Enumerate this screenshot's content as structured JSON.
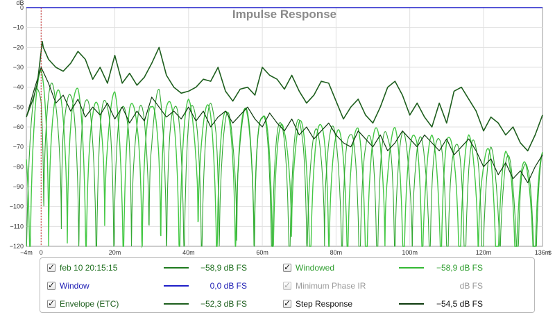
{
  "chart_data": {
    "type": "line",
    "title": "Impulse Response",
    "xlabel": "",
    "ylabel": "",
    "ylabel_unit": "dB",
    "xlim": [
      -4,
      136
    ],
    "ylim": [
      -120,
      0
    ],
    "x_ticks": [
      {
        "v": -4,
        "label": "-4m"
      },
      {
        "v": 0,
        "label": "0"
      },
      {
        "v": 20,
        "label": "20m"
      },
      {
        "v": 40,
        "label": "40m"
      },
      {
        "v": 60,
        "label": "60m"
      },
      {
        "v": 80,
        "label": "80m"
      },
      {
        "v": 100,
        "label": "100m"
      },
      {
        "v": 120,
        "label": "120m"
      },
      {
        "v": 136,
        "label": "136m"
      }
    ],
    "x_unit": "s",
    "y_ticks": [
      0,
      -10,
      -20,
      -30,
      -40,
      -50,
      -60,
      -70,
      -80,
      -90,
      -100,
      -110,
      -120
    ],
    "grid": true,
    "marker_x": 0,
    "series": [
      {
        "name": "Envelope (ETC)",
        "color": "#1d5e1d",
        "x": [
          -4,
          -3,
          -2,
          -1,
          0,
          0.3,
          0.6,
          2,
          4,
          6,
          8,
          10,
          12,
          14,
          16,
          18,
          20,
          22,
          24,
          26,
          28,
          30,
          32,
          34,
          36,
          38,
          40,
          42,
          44,
          46,
          48,
          50,
          52,
          54,
          56,
          58,
          60,
          62,
          64,
          66,
          68,
          70,
          72,
          74,
          76,
          78,
          80,
          82,
          84,
          86,
          88,
          90,
          92,
          94,
          96,
          98,
          100,
          102,
          104,
          106,
          108,
          110,
          112,
          114,
          116,
          118,
          120,
          122,
          124,
          126,
          128,
          130,
          132,
          134,
          136
        ],
        "y": [
          -55,
          -50,
          -45,
          -38,
          -22,
          -17,
          -20,
          -26,
          -30,
          -32,
          -28,
          -22,
          -26,
          -36,
          -30,
          -38,
          -24,
          -38,
          -33,
          -39,
          -35,
          -28,
          -20,
          -34,
          -40,
          -43,
          -42,
          -40,
          -36,
          -37,
          -30,
          -42,
          -47,
          -41,
          -40,
          -44,
          -30,
          -34,
          -36,
          -41,
          -34,
          -42,
          -48,
          -44,
          -37,
          -38,
          -47,
          -56,
          -50,
          -46,
          -54,
          -58,
          -50,
          -40,
          -37,
          -44,
          -54,
          -48,
          -55,
          -60,
          -48,
          -58,
          -42,
          -40,
          -46,
          -52,
          -62,
          -55,
          -58,
          -64,
          -60,
          -68,
          -72,
          -64,
          -54
        ]
      },
      {
        "name": "Step Response",
        "color": "#0d3a0d",
        "x": [
          -4,
          -2,
          0,
          2,
          4,
          6,
          8,
          10,
          12,
          14,
          16,
          18,
          20,
          22,
          24,
          26,
          28,
          30,
          32,
          34,
          36,
          38,
          40,
          42,
          44,
          46,
          48,
          50,
          52,
          54,
          56,
          58,
          60,
          62,
          64,
          66,
          68,
          70,
          72,
          74,
          76,
          78,
          80,
          82,
          84,
          86,
          88,
          90,
          92,
          94,
          96,
          98,
          100,
          102,
          104,
          106,
          108,
          110,
          112,
          114,
          116,
          118,
          120,
          122,
          124,
          126,
          128,
          130,
          132,
          134,
          136
        ],
        "y": [
          -55,
          -42,
          -30,
          -38,
          -48,
          -44,
          -52,
          -46,
          -55,
          -50,
          -54,
          -48,
          -56,
          -50,
          -58,
          -52,
          -57,
          -45,
          -50,
          -55,
          -52,
          -56,
          -50,
          -57,
          -52,
          -60,
          -55,
          -52,
          -58,
          -54,
          -50,
          -56,
          -60,
          -53,
          -58,
          -62,
          -56,
          -64,
          -60,
          -66,
          -62,
          -58,
          -64,
          -68,
          -70,
          -62,
          -66,
          -70,
          -64,
          -72,
          -68,
          -62,
          -66,
          -70,
          -64,
          -68,
          -72,
          -66,
          -74,
          -70,
          -66,
          -72,
          -80,
          -76,
          -84,
          -78,
          -86,
          -82,
          -88,
          -80,
          -74
        ]
      },
      {
        "name": "feb 10 20:15:15",
        "color": "#33a833",
        "x": [
          -4,
          -2,
          0,
          2,
          4,
          6,
          8,
          10,
          12,
          14,
          16,
          18,
          20,
          22,
          24,
          26,
          28,
          30,
          32,
          34,
          36,
          38,
          40,
          42,
          44,
          46,
          48,
          50,
          52,
          54,
          56,
          58,
          60,
          62,
          64,
          66,
          68,
          70,
          72,
          74,
          76,
          78,
          80,
          82,
          84,
          86,
          88,
          90,
          92,
          94,
          96,
          98,
          100,
          102,
          104,
          106,
          108,
          110,
          112,
          114,
          116,
          118,
          120,
          122,
          124,
          126,
          128,
          130,
          132,
          134,
          136
        ],
        "y": [
          -55,
          -45,
          -30,
          -34,
          -42,
          -40,
          -44,
          -40,
          -45,
          -50,
          -44,
          -48,
          -42,
          -50,
          -46,
          -52,
          -46,
          -50,
          -40,
          -45,
          -50,
          -48,
          -46,
          -52,
          -50,
          -48,
          -50,
          -52,
          -54,
          -52,
          -50,
          -48,
          -55,
          -52,
          -56,
          -60,
          -58,
          -56,
          -60,
          -62,
          -58,
          -56,
          -62,
          -60,
          -64,
          -60,
          -66,
          -62,
          -58,
          -64,
          -60,
          -62,
          -66,
          -62,
          -68,
          -64,
          -66,
          -62,
          -70,
          -66,
          -64,
          -68,
          -72,
          -70,
          -76,
          -72,
          -78,
          -74,
          -80,
          -76,
          -72
        ]
      },
      {
        "name": "Windowed",
        "color": "#44c844",
        "x": [],
        "y": []
      },
      {
        "name": "Window",
        "color": "#1e1ec8",
        "x": [
          -4,
          136
        ],
        "y": [
          0,
          0
        ]
      }
    ]
  },
  "legend": {
    "rows": [
      {
        "name": "feb 10 20:15:15",
        "value": "−58,9 dB FS",
        "color": "#1d7a1d",
        "text_color": "#1d6e1d",
        "checked": true,
        "disabled": false
      },
      {
        "name": "Windowed",
        "value": "−58,9 dB FS",
        "color": "#33b833",
        "text_color": "#2f9e2f",
        "checked": true,
        "disabled": false
      },
      {
        "name": "Window",
        "value": "0,0 dB FS",
        "color": "#1e1ec8",
        "text_color": "#1e1eb4",
        "checked": true,
        "disabled": false
      },
      {
        "name": "Minimum Phase IR",
        "value": "dB FS",
        "color": "",
        "text_color": "#9a9a9a",
        "checked": true,
        "disabled": true
      },
      {
        "name": "Envelope (ETC)",
        "value": "−52,3 dB FS",
        "color": "#1d5e1d",
        "text_color": "#1d5e1d",
        "checked": true,
        "disabled": false
      },
      {
        "name": "Step Response",
        "value": "−54,5 dB FS",
        "color": "#0d3a0d",
        "text_color": "#111111",
        "checked": true,
        "disabled": false
      }
    ]
  }
}
